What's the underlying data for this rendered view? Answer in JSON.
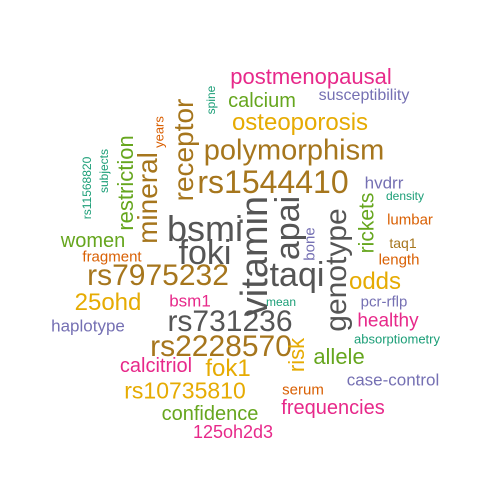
{
  "palette": {
    "magenta": "#e7298a",
    "orange": "#d95f02",
    "green": "#66a61e",
    "gold": "#e6ab02",
    "brown": "#a6761d",
    "teal": "#1b9e77",
    "purple": "#7570b3",
    "gray": "#555555"
  },
  "words": {
    "postmenopausal": "postmenopausal",
    "susceptibility": "susceptibility",
    "spine": "spine",
    "calcium": "calcium",
    "years": "years",
    "receptor": "receptor",
    "osteoporosis": "osteoporosis",
    "polymorphism": "polymorphism",
    "rs11568820": "rs11568820",
    "subjects": "subjects",
    "restriction": "restriction",
    "mineral": "mineral",
    "rs1544410": "rs1544410",
    "hvdrr": "hvdrr",
    "density": "density",
    "bsmi": "bsmi",
    "vitamin": "vitamin",
    "apai": "apai",
    "genotype": "genotype",
    "rickets": "rickets",
    "lumbar": "lumbar",
    "women": "women",
    "foki": "foki",
    "bone": "bone",
    "taq1": "taq1",
    "fragment": "fragment",
    "length": "length",
    "rs7975232": "rs7975232",
    "taqi": "taqi",
    "odds": "odds",
    "25ohd": "25ohd",
    "bsm1": "bsm1",
    "mean": "mean",
    "pcr-rflp": "pcr-rflp",
    "haplotype": "haplotype",
    "rs731236": "rs731236",
    "healthy": "healthy",
    "absorptiometry": "absorptiometry",
    "rs2228570": "rs2228570",
    "risk": "risk",
    "allele": "allele",
    "calcitriol": "calcitriol",
    "fok1": "fok1",
    "serum": "serum",
    "case-control": "case-control",
    "rs10735810": "rs10735810",
    "confidence": "confidence",
    "frequencies": "frequencies",
    "125oh2d3": "125oh2d3"
  }
}
